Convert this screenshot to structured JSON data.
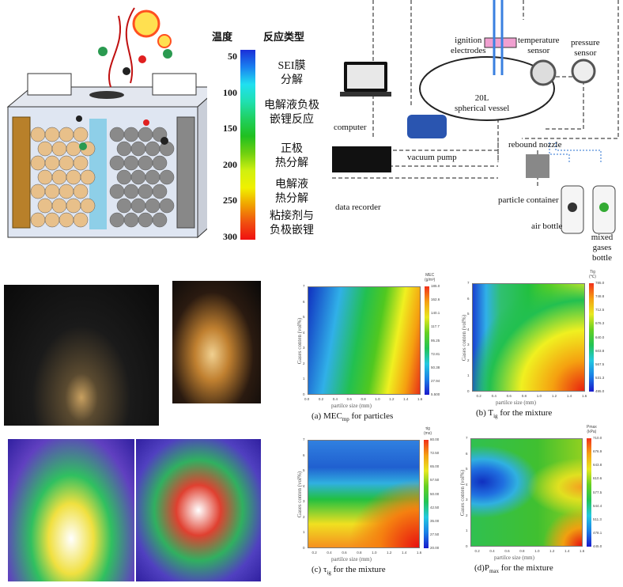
{
  "battery_panel": {
    "temperature_header": "温度",
    "reaction_header": "反应类型",
    "temperatures": [
      "50",
      "100",
      "150",
      "200",
      "250",
      "300"
    ],
    "reactions": [
      "SEI膜\n分解",
      "电解液负极\n嵌锂反应",
      "正极\n热分解",
      "电解液\n热分解",
      "粘接剂与\n负极嵌锂"
    ],
    "colors": {
      "low": "#1a2fd8",
      "high": "#f01010"
    }
  },
  "apparatus": {
    "labels": {
      "ignition": "ignition\nelectrodes",
      "temperature": "temperature\nsensor",
      "pressure": "pressure\nsensor",
      "computer": "computer",
      "vessel": "20L\nspherical vessel",
      "nozzle": "rebound nozzle",
      "vacuum": "vacuum pump",
      "recorder": "data recorder",
      "container": "particle container",
      "air": "air bottle",
      "mixed": "mixed gases\nbottle"
    }
  },
  "heatmaps": [
    {
      "caption": "(a) MEC",
      "caption_sub": "mp",
      "caption_rest": " for particles",
      "cbar_title": "MEC\n(g/m³)",
      "ylabel": "Gases conten (vol%)",
      "xlabel": "partilce size (mm)",
      "xticks": [
        "0.0",
        "0.2",
        "0.4",
        "0.6",
        "0.8",
        "1.0",
        "1.2",
        "1.4",
        "1.6"
      ],
      "yticks": [
        "0",
        "1",
        "2",
        "3",
        "4",
        "5",
        "6",
        "7"
      ],
      "cbar_ticks": [
        "185.0",
        "162.6",
        "140.1",
        "117.7",
        "95.25",
        "72.81",
        "50.38",
        "27.94",
        "5.500"
      ]
    },
    {
      "caption": "(b) T",
      "caption_sub": "ig",
      "caption_rest": " for the mixture",
      "cbar_title": "Tig\n(℃)",
      "ylabel": "Gases conten (vol%)",
      "xlabel": "partilce size (mm)",
      "xticks": [
        "0.2",
        "0.4",
        "0.6",
        "0.8",
        "1.0",
        "1.2",
        "1.4",
        "1.6"
      ],
      "yticks": [
        "0",
        "1",
        "2",
        "3",
        "4",
        "5",
        "6",
        "7"
      ],
      "cbar_ticks": [
        "785.0",
        "748.8",
        "712.5",
        "676.3",
        "640.0",
        "603.8",
        "567.5",
        "531.3",
        "495.0"
      ]
    },
    {
      "caption": "(c) τ",
      "caption_sub": "ig",
      "caption_rest": " for the mixture",
      "cbar_title": "τig\n(ms)",
      "ylabel": "Gases conten (vol%)",
      "xlabel": "partilce size (mm)",
      "xticks": [
        "0.2",
        "0.4",
        "0.6",
        "0.8",
        "1.0",
        "1.2",
        "1.4",
        "1.6"
      ],
      "yticks": [
        "0",
        "1",
        "2",
        "3",
        "4",
        "5",
        "6",
        "7"
      ],
      "cbar_ticks": [
        "80.00",
        "72.50",
        "65.00",
        "57.50",
        "50.00",
        "42.50",
        "35.00",
        "27.50",
        "20.00"
      ]
    },
    {
      "caption": "(d)P",
      "caption_sub": "max",
      "caption_rest": " for the mixture",
      "cbar_title": "Pmax\n(kPa)",
      "ylabel": "Gases conten (vol%)",
      "xlabel": "partilce size (mm)",
      "xticks": [
        "0.2",
        "0.4",
        "0.6",
        "0.8",
        "1.0",
        "1.2",
        "1.4",
        "1.6"
      ],
      "yticks": [
        "0",
        "1",
        "2",
        "3",
        "4",
        "5",
        "6",
        "7"
      ],
      "cbar_ticks": [
        "710.0",
        "676.9",
        "643.8",
        "610.6",
        "577.5",
        "544.4",
        "511.3",
        "478.1",
        "445.0"
      ]
    }
  ]
}
